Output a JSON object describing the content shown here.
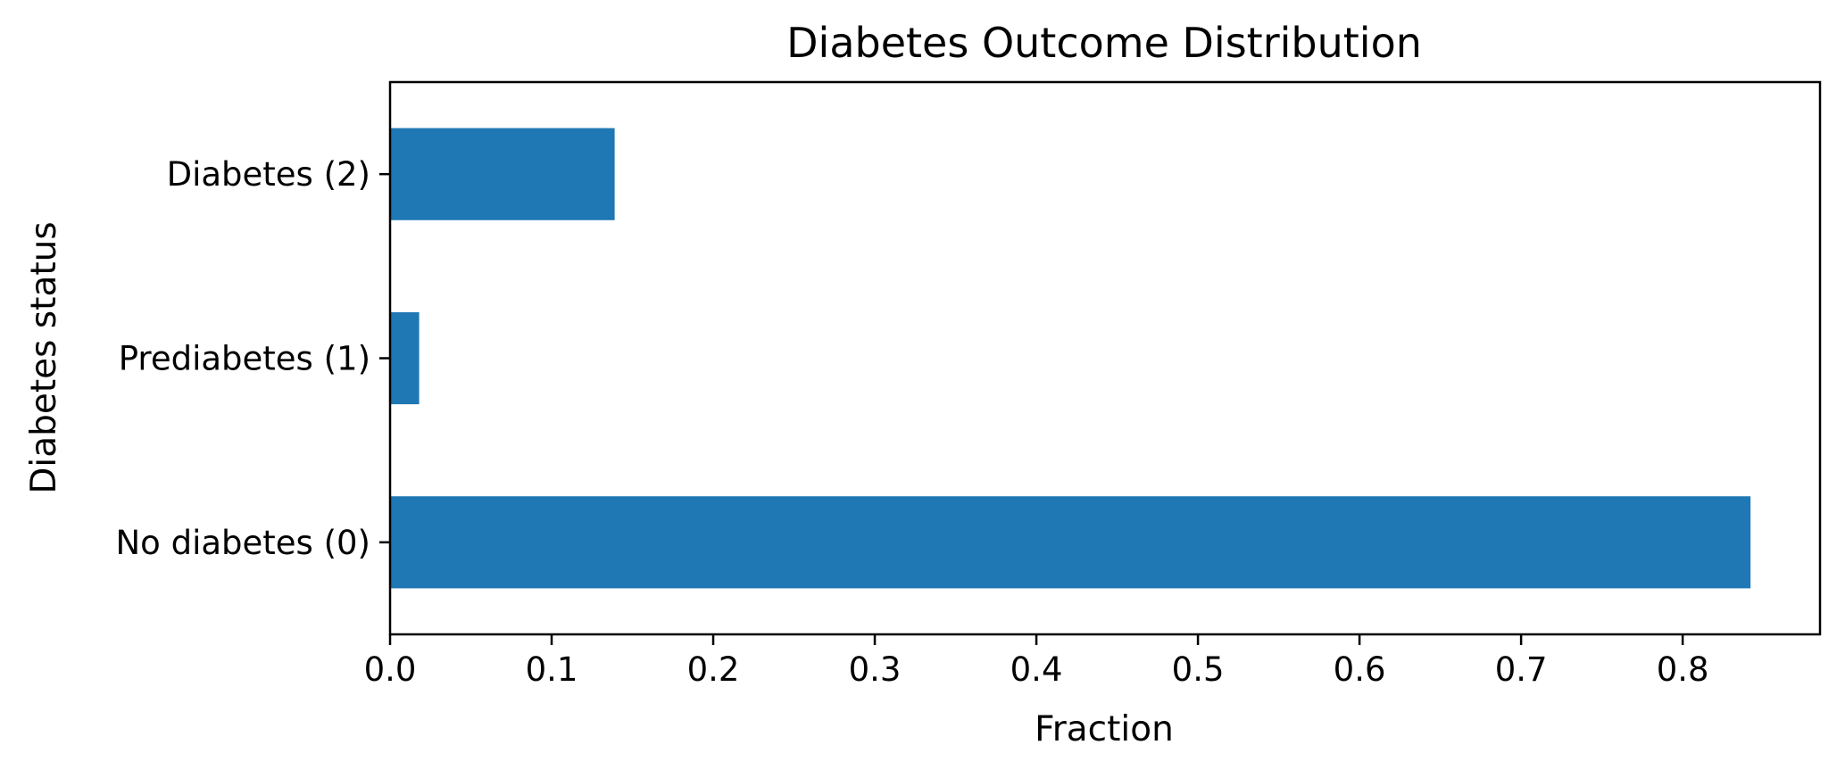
{
  "chart_data": {
    "type": "bar",
    "orientation": "horizontal",
    "title": "Diabetes Outcome Distribution",
    "xlabel": "Fraction",
    "ylabel": "Diabetes status",
    "categories": [
      "No diabetes (0)",
      "Prediabetes (1)",
      "Diabetes (2)"
    ],
    "values": [
      0.842,
      0.018,
      0.139
    ],
    "xlim": [
      0,
      0.885
    ],
    "xticks": [
      "0.0",
      "0.1",
      "0.2",
      "0.3",
      "0.4",
      "0.5",
      "0.6",
      "0.7",
      "0.8"
    ],
    "xtick_values": [
      0,
      0.1,
      0.2,
      0.3,
      0.4,
      0.5,
      0.6,
      0.7,
      0.8
    ],
    "grid": false,
    "legend": null,
    "bar_color": "#1f77b4"
  }
}
